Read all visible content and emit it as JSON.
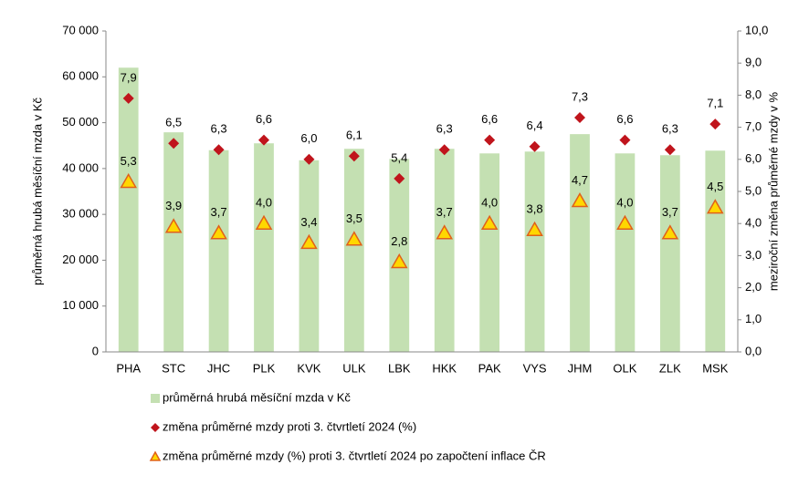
{
  "chart_data": {
    "type": "bar",
    "y_label": "průměrná hrubá měsíční mzda v Kč",
    "y2_label": "meziroční změna průměrné mzdy v %",
    "categories": [
      "PHA",
      "STC",
      "JHC",
      "PLK",
      "KVK",
      "ULK",
      "LBK",
      "HKK",
      "PAK",
      "VYS",
      "JHM",
      "OLK",
      "ZLK",
      "MSK"
    ],
    "series": [
      {
        "name": "průměrná hrubá měsíční mzda v Kč",
        "color": "#c4e0b2",
        "marker": "bar",
        "values": [
          62000,
          47900,
          44000,
          45500,
          41800,
          44300,
          42100,
          44300,
          43300,
          43700,
          47500,
          43300,
          42900,
          43900
        ]
      },
      {
        "name": "změna průměrné mzdy proti 3. čtvrtletí 2024 (%)",
        "color": "#c0141c",
        "marker": "diamond",
        "axis": "y2",
        "values": [
          7.9,
          6.5,
          6.3,
          6.6,
          6.0,
          6.1,
          5.4,
          6.3,
          6.6,
          6.4,
          7.3,
          6.6,
          6.3,
          7.1
        ],
        "value_labels": [
          "7,9",
          "6,5",
          "6,3",
          "6,6",
          "6,0",
          "6,1",
          "5,4",
          "6,3",
          "6,6",
          "6,4",
          "7,3",
          "6,6",
          "6,3",
          "7,1"
        ]
      },
      {
        "name": "změna průměrné mzdy (%) proti 3. čtvrtletí 2024 po započtení inflace ČR",
        "color": "#ffd700",
        "edge_color": "#e0601a",
        "marker": "triangle",
        "axis": "y2",
        "values": [
          5.3,
          3.9,
          3.7,
          4.0,
          3.4,
          3.5,
          2.8,
          3.7,
          4.0,
          3.8,
          4.7,
          4.0,
          3.7,
          4.5
        ],
        "value_labels": [
          "5,3",
          "3,9",
          "3,7",
          "4,0",
          "3,4",
          "3,5",
          "2,8",
          "3,7",
          "4,0",
          "3,8",
          "4,7",
          "4,0",
          "3,7",
          "4,5"
        ]
      }
    ],
    "ylim": [
      0,
      70000
    ],
    "yticks": [
      0,
      {
        "value": 10000,
        "label": "10 000"
      },
      {
        "value": 20000,
        "label": "20 000"
      },
      {
        "value": 30000,
        "label": "30 000"
      },
      {
        "value": 40000,
        "label": "40 000"
      },
      {
        "value": 50000,
        "label": "50 000"
      },
      {
        "value": 60000,
        "label": "60 000"
      },
      {
        "value": 70000,
        "label": "70 000"
      }
    ],
    "y2lim": [
      0,
      10
    ],
    "y2ticks": [
      {
        "value": 0,
        "label": "0,0"
      },
      {
        "value": 1,
        "label": "1,0"
      },
      {
        "value": 2,
        "label": "2,0"
      },
      {
        "value": 3,
        "label": "3,0"
      },
      {
        "value": 4,
        "label": "4,0"
      },
      {
        "value": 5,
        "label": "5,0"
      },
      {
        "value": 6,
        "label": "6,0"
      },
      {
        "value": 7,
        "label": "7,0"
      },
      {
        "value": 8,
        "label": "8,0"
      },
      {
        "value": 9,
        "label": "9,0"
      },
      {
        "value": 10,
        "label": "10,0"
      }
    ],
    "grid": false
  }
}
